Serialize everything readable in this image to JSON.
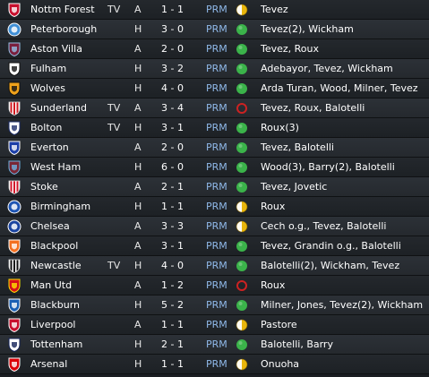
{
  "colors": {
    "win": "#3bb34a",
    "draw": "#e8b50c",
    "loss": "#cc2222"
  },
  "fixtures": [
    {
      "team": "Nottm Forest",
      "tag": "TV",
      "venue": "A",
      "score": "1 - 1",
      "competition": "PRM",
      "result": "draw",
      "scorers": "Tevez",
      "crest": {
        "shape": "shield",
        "primary": "#c8102e",
        "secondary": "#ffffff"
      }
    },
    {
      "team": "Peterborough",
      "tag": "",
      "venue": "H",
      "score": "3 - 0",
      "competition": "PRM",
      "result": "win",
      "scorers": "Tevez(2), Wickham",
      "crest": {
        "shape": "round",
        "primary": "#3f8fd6",
        "secondary": "#ffffff"
      }
    },
    {
      "team": "Aston Villa",
      "tag": "",
      "venue": "A",
      "score": "2 - 0",
      "competition": "PRM",
      "result": "win",
      "scorers": "Tevez, Roux",
      "crest": {
        "shape": "shield",
        "primary": "#7a1f3d",
        "secondary": "#95bfe5"
      }
    },
    {
      "team": "Fulham",
      "tag": "",
      "venue": "H",
      "score": "3 - 2",
      "competition": "PRM",
      "result": "win",
      "scorers": "Adebayor, Tevez, Wickham",
      "crest": {
        "shape": "shield",
        "primary": "#ffffff",
        "secondary": "#111111"
      }
    },
    {
      "team": "Wolves",
      "tag": "",
      "venue": "H",
      "score": "4 - 0",
      "competition": "PRM",
      "result": "win",
      "scorers": "Arda Turan, Wood, Milner, Tevez",
      "crest": {
        "shape": "shield",
        "primary": "#f0a21b",
        "secondary": "#111111"
      }
    },
    {
      "team": "Sunderland",
      "tag": "TV",
      "venue": "A",
      "score": "3 - 4",
      "competition": "PRM",
      "result": "loss",
      "scorers": "Tevez, Roux, Balotelli",
      "crest": {
        "shape": "stripes",
        "primary": "#d01920",
        "secondary": "#ffffff"
      }
    },
    {
      "team": "Bolton",
      "tag": "TV",
      "venue": "H",
      "score": "3 - 1",
      "competition": "PRM",
      "result": "win",
      "scorers": "Roux(3)",
      "crest": {
        "shape": "shield",
        "primary": "#ffffff",
        "secondary": "#1e2f6b"
      }
    },
    {
      "team": "Everton",
      "tag": "",
      "venue": "A",
      "score": "2 - 0",
      "competition": "PRM",
      "result": "win",
      "scorers": "Tevez, Balotelli",
      "crest": {
        "shape": "shield",
        "primary": "#1c3fa8",
        "secondary": "#ffffff"
      }
    },
    {
      "team": "West Ham",
      "tag": "",
      "venue": "H",
      "score": "6 - 0",
      "competition": "PRM",
      "result": "win",
      "scorers": "Wood(3), Barry(2), Balotelli",
      "crest": {
        "shape": "shield",
        "primary": "#7a2634",
        "secondary": "#6fb1e1"
      }
    },
    {
      "team": "Stoke",
      "tag": "",
      "venue": "A",
      "score": "2 - 1",
      "competition": "PRM",
      "result": "win",
      "scorers": "Tevez, Jovetic",
      "crest": {
        "shape": "stripes",
        "primary": "#d2152a",
        "secondary": "#ffffff"
      }
    },
    {
      "team": "Birmingham",
      "tag": "",
      "venue": "H",
      "score": "1 - 1",
      "competition": "PRM",
      "result": "draw",
      "scorers": "Roux",
      "crest": {
        "shape": "round",
        "primary": "#1e55b3",
        "secondary": "#ffffff"
      }
    },
    {
      "team": "Chelsea",
      "tag": "",
      "venue": "A",
      "score": "3 - 3",
      "competition": "PRM",
      "result": "draw",
      "scorers": "Cech o.g., Tevez, Balotelli",
      "crest": {
        "shape": "round",
        "primary": "#1a44a0",
        "secondary": "#ffffff"
      }
    },
    {
      "team": "Blackpool",
      "tag": "",
      "venue": "A",
      "score": "3 - 1",
      "competition": "PRM",
      "result": "win",
      "scorers": "Tevez, Grandin o.g., Balotelli",
      "crest": {
        "shape": "shield",
        "primary": "#f37021",
        "secondary": "#ffffff"
      }
    },
    {
      "team": "Newcastle",
      "tag": "TV",
      "venue": "H",
      "score": "4 - 0",
      "competition": "PRM",
      "result": "win",
      "scorers": "Balotelli(2), Wickham, Tevez",
      "crest": {
        "shape": "stripes",
        "primary": "#111111",
        "secondary": "#ffffff"
      }
    },
    {
      "team": "Man Utd",
      "tag": "",
      "venue": "A",
      "score": "1 - 2",
      "competition": "PRM",
      "result": "loss",
      "scorers": "Roux",
      "crest": {
        "shape": "shield",
        "primary": "#d6111a",
        "secondary": "#ffe400"
      }
    },
    {
      "team": "Blackburn",
      "tag": "",
      "venue": "H",
      "score": "5 - 2",
      "competition": "PRM",
      "result": "win",
      "scorers": "Milner, Jones, Tevez(2), Wickham",
      "crest": {
        "shape": "shield",
        "primary": "#1a5fb4",
        "secondary": "#ffffff"
      }
    },
    {
      "team": "Liverpool",
      "tag": "",
      "venue": "A",
      "score": "1 - 1",
      "competition": "PRM",
      "result": "draw",
      "scorers": "Pastore",
      "crest": {
        "shape": "shield",
        "primary": "#c8102e",
        "secondary": "#ffffff"
      }
    },
    {
      "team": "Tottenham",
      "tag": "",
      "venue": "H",
      "score": "2 - 1",
      "competition": "PRM",
      "result": "win",
      "scorers": "Balotelli, Barry",
      "crest": {
        "shape": "shield",
        "primary": "#ffffff",
        "secondary": "#132257"
      }
    },
    {
      "team": "Arsenal",
      "tag": "",
      "venue": "H",
      "score": "1 - 1",
      "competition": "PRM",
      "result": "draw",
      "scorers": "Onuoha",
      "crest": {
        "shape": "shield",
        "primary": "#db0007",
        "secondary": "#ffffff"
      }
    }
  ]
}
